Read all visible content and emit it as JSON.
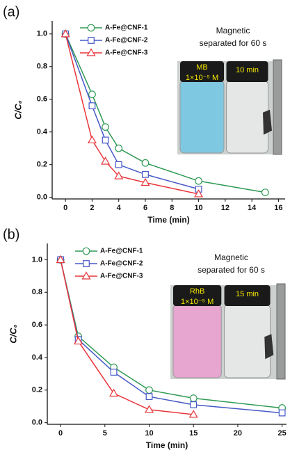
{
  "chart_data": [
    {
      "type": "line",
      "panel_label": "(a)",
      "xlabel": "Time (min)",
      "ylabel": "C/C₀",
      "xlim": [
        -1,
        16.5
      ],
      "ylim": [
        -0.01,
        1.08
      ],
      "xticks": [
        0,
        2,
        4,
        6,
        8,
        10,
        12,
        14,
        16
      ],
      "yticks": [
        {
          "value": 0,
          "label": "0.0"
        },
        0.2,
        0.4,
        0.6,
        0.8,
        {
          "value": 1,
          "label": "1.0"
        }
      ],
      "legend": "upper left",
      "series": [
        {
          "name": "A-Fe@CNF-1",
          "color": "#2f9a55",
          "marker": "circle",
          "x": [
            0,
            2,
            3,
            4,
            6,
            10,
            15
          ],
          "values": [
            1.0,
            0.63,
            0.43,
            0.3,
            0.21,
            0.1,
            0.03
          ]
        },
        {
          "name": "A-Fe@CNF-2",
          "color": "#4558c8",
          "marker": "square",
          "x": [
            0,
            2,
            3,
            4,
            6,
            10
          ],
          "values": [
            1.0,
            0.56,
            0.35,
            0.2,
            0.14,
            0.05
          ]
        },
        {
          "name": "A-Fe@CNF-3",
          "color": "#e8343a",
          "marker": "triangle",
          "x": [
            0,
            2,
            3,
            4,
            6,
            10
          ],
          "values": [
            1.0,
            0.35,
            0.22,
            0.13,
            0.09,
            0.02
          ]
        }
      ],
      "inset": {
        "title": [
          "Magnetic",
          "separated for 60 s"
        ],
        "vial_label": [
          "MB",
          "1×10⁻⁵ M"
        ],
        "time_label": "10 min",
        "liquid_color": "#7fc8e2"
      }
    },
    {
      "type": "line",
      "panel_label": "(b)",
      "xlabel": "Time (min)",
      "ylabel": "C/C₀",
      "xlim": [
        -1.5,
        25.5
      ],
      "ylim": [
        -0.01,
        1.1
      ],
      "xticks": [
        0,
        5,
        10,
        15,
        20,
        25
      ],
      "yticks": [
        {
          "value": 0,
          "label": "0.0"
        },
        0.2,
        0.4,
        0.6,
        0.8,
        {
          "value": 1,
          "label": "1.0"
        }
      ],
      "legend": "upper left",
      "series": [
        {
          "name": "A-Fe@CNF-1",
          "color": "#2f9a55",
          "marker": "circle",
          "x": [
            0,
            2,
            6,
            10,
            15,
            25
          ],
          "values": [
            1.0,
            0.53,
            0.34,
            0.2,
            0.15,
            0.09
          ]
        },
        {
          "name": "A-Fe@CNF-2",
          "color": "#4558c8",
          "marker": "square",
          "x": [
            0,
            2,
            6,
            10,
            15,
            25
          ],
          "values": [
            1.0,
            0.51,
            0.31,
            0.16,
            0.11,
            0.06
          ]
        },
        {
          "name": "A-Fe@CNF-3",
          "color": "#e8343a",
          "marker": "triangle",
          "x": [
            0,
            2,
            6,
            10,
            15
          ],
          "values": [
            1.0,
            0.5,
            0.18,
            0.08,
            0.05
          ]
        }
      ],
      "inset": {
        "title": [
          "Magnetic",
          "separated for 60 s"
        ],
        "vial_label": [
          "RhB",
          "1×10⁻⁵ M"
        ],
        "time_label": "15 min",
        "liquid_color": "#e6a6cf"
      }
    }
  ]
}
